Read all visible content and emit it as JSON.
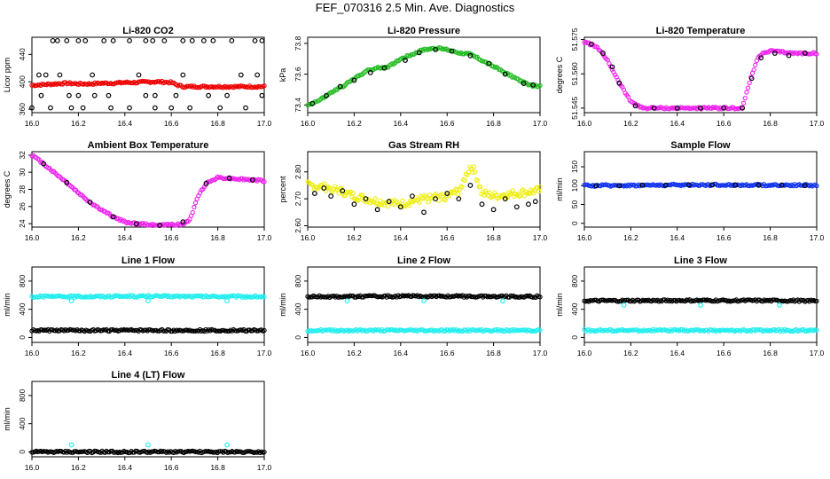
{
  "figure_title": "FEF_070316  2.5 Min. Ave. Diagnostics",
  "colors": {
    "red": "#ee0000",
    "green": "#22bb22",
    "magenta": "#ee22ee",
    "yellow": "#eeee11",
    "blue": "#1133ee",
    "cyan": "#22eeee",
    "black": "#000000"
  },
  "chart_data": [
    {
      "id": "co2",
      "type": "scatter",
      "title": "Li-820 CO2",
      "xlabel": "",
      "ylabel": "Licor ppm",
      "xlim": [
        16.0,
        17.0
      ],
      "ylim": [
        355,
        465
      ],
      "xticks": [
        16.0,
        16.2,
        16.4,
        16.6,
        16.8,
        17.0
      ],
      "xtick_labels": [
        "16.0",
        "16.2",
        "16.4",
        "16.6",
        "16.8",
        "17.0"
      ],
      "yticks": [
        360,
        400,
        440
      ],
      "ytick_labels": [
        "360",
        "400",
        "440"
      ],
      "series": [
        {
          "name": "licor dense",
          "color": "red",
          "style": "dense",
          "x": [
            16.0,
            16.05,
            16.1,
            16.15,
            16.2,
            16.25,
            16.3,
            16.35,
            16.4,
            16.45,
            16.5,
            16.55,
            16.6,
            16.62,
            16.65,
            16.7,
            16.8,
            16.9,
            17.0
          ],
          "y": [
            395,
            396,
            397,
            398,
            397,
            397,
            398,
            398,
            399,
            399,
            400,
            400,
            399,
            396,
            393,
            393,
            393,
            393,
            393
          ]
        },
        {
          "name": "averages",
          "color": "black",
          "style": "open",
          "x": [
            16.09,
            16.11,
            16.15,
            16.2,
            16.23,
            16.31,
            16.35,
            16.42,
            16.49,
            16.52,
            16.57,
            16.65,
            16.69,
            16.74,
            16.78,
            16.86,
            16.96,
            16.99,
            16.0,
            16.08,
            16.17,
            16.22,
            16.34,
            16.42,
            16.53,
            16.6,
            16.68,
            16.81,
            16.92,
            16.04,
            16.16,
            16.2,
            16.27,
            16.33,
            16.49,
            16.53,
            16.62,
            16.76,
            16.84,
            16.99,
            16.03,
            16.06,
            16.12,
            16.26,
            16.46,
            16.65,
            16.9,
            16.97
          ],
          "y": [
            460,
            460,
            460,
            460,
            460,
            460,
            460,
            460,
            460,
            460,
            460,
            460,
            460,
            460,
            460,
            460,
            460,
            460,
            362,
            362,
            362,
            362,
            362,
            362,
            362,
            362,
            362,
            362,
            362,
            380,
            380,
            380,
            380,
            380,
            380,
            380,
            380,
            380,
            380,
            380,
            410,
            410,
            410,
            410,
            410,
            410,
            410,
            410
          ]
        }
      ]
    },
    {
      "id": "pressure",
      "type": "scatter",
      "title": "Li-820 Pressure",
      "xlabel": "",
      "ylabel": "kPa",
      "xlim": [
        16.0,
        17.0
      ],
      "ylim": [
        73.35,
        73.84
      ],
      "xticks": [
        16.0,
        16.2,
        16.4,
        16.6,
        16.8,
        17.0
      ],
      "xtick_labels": [
        "16.0",
        "16.2",
        "16.4",
        "16.6",
        "16.8",
        "17.0"
      ],
      "yticks": [
        73.4,
        73.6,
        73.8
      ],
      "ytick_labels": [
        "73.4",
        "73.6",
        "73.8"
      ],
      "series": [
        {
          "name": "curve",
          "color": "green",
          "style": "dense",
          "x": [
            16.0,
            16.05,
            16.1,
            16.15,
            16.2,
            16.25,
            16.3,
            16.35,
            16.4,
            16.45,
            16.5,
            16.55,
            16.6,
            16.65,
            16.7,
            16.75,
            16.8,
            16.85,
            16.9,
            16.95,
            17.0
          ],
          "y": [
            73.4,
            73.43,
            73.48,
            73.52,
            73.57,
            73.62,
            73.64,
            73.65,
            73.7,
            73.73,
            73.76,
            73.77,
            73.76,
            73.74,
            73.73,
            73.69,
            73.65,
            73.61,
            73.57,
            73.53,
            73.52
          ]
        },
        {
          "name": "averages",
          "color": "black",
          "style": "open",
          "x": [
            16.02,
            16.08,
            16.14,
            16.2,
            16.27,
            16.33,
            16.42,
            16.48,
            16.55,
            16.62,
            16.7,
            16.78,
            16.85,
            16.93,
            16.97
          ],
          "y": [
            73.41,
            73.46,
            73.52,
            73.56,
            73.61,
            73.64,
            73.69,
            73.74,
            73.76,
            73.75,
            73.72,
            73.67,
            73.6,
            73.54,
            73.53
          ]
        }
      ]
    },
    {
      "id": "licor-temp",
      "type": "scatter",
      "title": "Li-820 Temperature",
      "xlabel": "",
      "ylabel": "degrees C",
      "xlim": [
        16.0,
        17.0
      ],
      "ylim": [
        51.543,
        51.576
      ],
      "xticks": [
        16.0,
        16.2,
        16.4,
        16.6,
        16.8,
        17.0
      ],
      "xtick_labels": [
        "16.0",
        "16.2",
        "16.4",
        "16.6",
        "16.8",
        "17.0"
      ],
      "yticks": [
        51.545,
        51.56,
        51.575
      ],
      "ytick_labels": [
        "51.545",
        "51.560",
        "51.575"
      ],
      "series": [
        {
          "name": "temperature",
          "color": "magenta",
          "style": "dense",
          "x": [
            16.0,
            16.05,
            16.1,
            16.15,
            16.2,
            16.25,
            16.3,
            16.4,
            16.5,
            16.6,
            16.68,
            16.71,
            16.75,
            16.8,
            16.9,
            17.0
          ],
          "y": [
            51.574,
            51.572,
            51.566,
            51.556,
            51.548,
            51.545,
            51.545,
            51.545,
            51.545,
            51.545,
            51.545,
            51.556,
            51.568,
            51.57,
            51.569,
            51.569
          ]
        },
        {
          "name": "averages",
          "color": "black",
          "style": "open",
          "x": [
            16.03,
            16.08,
            16.12,
            16.15,
            16.22,
            16.3,
            16.4,
            16.5,
            16.6,
            16.68,
            16.72,
            16.76,
            16.82,
            16.88,
            16.95
          ],
          "y": [
            51.573,
            51.569,
            51.563,
            51.556,
            51.546,
            51.545,
            51.545,
            51.545,
            51.545,
            51.545,
            51.558,
            51.567,
            51.569,
            51.568,
            51.569
          ]
        }
      ]
    },
    {
      "id": "box-temp",
      "type": "scatter",
      "title": "Ambient Box Temperature",
      "xlabel": "",
      "ylabel": "degrees C",
      "xlim": [
        16.0,
        17.0
      ],
      "ylim": [
        23.6,
        32.4
      ],
      "xticks": [
        16.0,
        16.2,
        16.4,
        16.6,
        16.8,
        17.0
      ],
      "xtick_labels": [
        "16.0",
        "16.2",
        "16.4",
        "16.6",
        "16.8",
        "17.0"
      ],
      "yticks": [
        24,
        26,
        28,
        30,
        32
      ],
      "ytick_labels": [
        "24",
        "26",
        "28",
        "30",
        "32"
      ],
      "series": [
        {
          "name": "temperature",
          "color": "magenta",
          "style": "dense",
          "x": [
            16.0,
            16.05,
            16.1,
            16.15,
            16.2,
            16.25,
            16.3,
            16.35,
            16.4,
            16.45,
            16.5,
            16.55,
            16.6,
            16.65,
            16.68,
            16.7,
            16.72,
            16.75,
            16.8,
            16.85,
            16.9,
            16.95,
            17.0
          ],
          "y": [
            32.0,
            31.0,
            29.9,
            28.8,
            27.6,
            26.5,
            25.6,
            24.8,
            24.2,
            24.0,
            23.9,
            23.8,
            23.9,
            23.9,
            24.5,
            26.0,
            27.5,
            28.7,
            29.4,
            29.3,
            29.2,
            29.1,
            29.0
          ]
        },
        {
          "name": "averages",
          "color": "black",
          "style": "open",
          "x": [
            16.05,
            16.15,
            16.25,
            16.35,
            16.45,
            16.55,
            16.65,
            16.75,
            16.85,
            16.95
          ],
          "y": [
            31.0,
            28.8,
            26.5,
            24.8,
            24.0,
            23.8,
            24.2,
            28.7,
            29.3,
            29.1
          ]
        }
      ]
    },
    {
      "id": "rh",
      "type": "scatter",
      "title": "Gas Stream RH",
      "xlabel": "",
      "ylabel": "percent",
      "xlim": [
        16.0,
        17.0
      ],
      "ylim": [
        2.595,
        2.875
      ],
      "xticks": [
        16.0,
        16.2,
        16.4,
        16.6,
        16.8,
        17.0
      ],
      "xtick_labels": [
        "16.0",
        "16.2",
        "16.4",
        "16.6",
        "16.8",
        "17.0"
      ],
      "yticks": [
        2.6,
        2.7,
        2.8
      ],
      "ytick_labels": [
        "2.60",
        "2.70",
        "2.80"
      ],
      "series": [
        {
          "name": "rh",
          "color": "yellow",
          "style": "noisy",
          "x": [
            16.0,
            16.1,
            16.2,
            16.3,
            16.4,
            16.5,
            16.6,
            16.65,
            16.7,
            16.72,
            16.75,
            16.8,
            16.9,
            17.0
          ],
          "y": [
            2.75,
            2.74,
            2.71,
            2.69,
            2.68,
            2.7,
            2.71,
            2.73,
            2.82,
            2.8,
            2.72,
            2.71,
            2.72,
            2.73
          ]
        },
        {
          "name": "averages",
          "color": "black",
          "style": "open",
          "x": [
            16.03,
            16.07,
            16.1,
            16.15,
            16.2,
            16.25,
            16.3,
            16.35,
            16.4,
            16.45,
            16.5,
            16.55,
            16.6,
            16.65,
            16.7,
            16.75,
            16.8,
            16.85,
            16.9,
            16.95,
            16.98
          ],
          "y": [
            2.72,
            2.74,
            2.71,
            2.73,
            2.68,
            2.7,
            2.66,
            2.69,
            2.67,
            2.71,
            2.65,
            2.7,
            2.72,
            2.7,
            2.75,
            2.68,
            2.66,
            2.7,
            2.67,
            2.68,
            2.69
          ]
        }
      ]
    },
    {
      "id": "sample-flow",
      "type": "scatter",
      "title": "Sample Flow",
      "xlabel": "",
      "ylabel": "ml/min",
      "xlim": [
        16.0,
        17.0
      ],
      "ylim": [
        -10,
        190
      ],
      "xticks": [
        16.0,
        16.2,
        16.4,
        16.6,
        16.8,
        17.0
      ],
      "xtick_labels": [
        "16.0",
        "16.2",
        "16.4",
        "16.6",
        "16.8",
        "17.0"
      ],
      "yticks": [
        0,
        50,
        100,
        150
      ],
      "ytick_labels": [
        "0",
        "50",
        "100",
        "150"
      ],
      "series": [
        {
          "name": "flow",
          "color": "blue",
          "style": "dense",
          "x": [
            16.0,
            16.5,
            17.0
          ],
          "y": [
            100,
            102,
            101
          ]
        },
        {
          "name": "averages",
          "color": "black",
          "style": "open",
          "x": [
            16.05,
            16.15,
            16.25,
            16.35,
            16.45,
            16.55,
            16.65,
            16.75,
            16.85,
            16.95
          ],
          "y": [
            100,
            100,
            101,
            101,
            102,
            102,
            101,
            101,
            101,
            100
          ]
        }
      ]
    },
    {
      "id": "line1",
      "type": "scatter",
      "title": "Line 1 Flow",
      "xlabel": "",
      "ylabel": "ml/min",
      "xlim": [
        16.0,
        17.0
      ],
      "ylim": [
        -70,
        1000
      ],
      "xticks": [
        16.0,
        16.2,
        16.4,
        16.6,
        16.8,
        17.0
      ],
      "xtick_labels": [
        "16.0",
        "16.2",
        "16.4",
        "16.6",
        "16.8",
        "17.0"
      ],
      "yticks": [
        0,
        400,
        800
      ],
      "ytick_labels": [
        "0",
        "400",
        "800"
      ],
      "series": [
        {
          "name": "flow high",
          "color": "cyan",
          "style": "dense",
          "x": [
            16.0,
            16.5,
            17.0
          ],
          "y": [
            580,
            585,
            580
          ]
        },
        {
          "name": "flow low",
          "color": "black",
          "style": "dense",
          "x": [
            16.0,
            16.5,
            17.0
          ],
          "y": [
            100,
            100,
            100
          ]
        },
        {
          "name": "outliers",
          "color": "cyan",
          "style": "open",
          "x": [
            16.17,
            16.5,
            16.84
          ],
          "y": [
            520,
            520,
            520
          ]
        }
      ]
    },
    {
      "id": "line2",
      "type": "scatter",
      "title": "Line 2 Flow",
      "xlabel": "",
      "ylabel": "ml/min",
      "xlim": [
        16.0,
        17.0
      ],
      "ylim": [
        -70,
        1000
      ],
      "xticks": [
        16.0,
        16.2,
        16.4,
        16.6,
        16.8,
        17.0
      ],
      "xtick_labels": [
        "16.0",
        "16.2",
        "16.4",
        "16.6",
        "16.8",
        "17.0"
      ],
      "yticks": [
        0,
        400,
        800
      ],
      "ytick_labels": [
        "0",
        "400",
        "800"
      ],
      "series": [
        {
          "name": "flow high",
          "color": "black",
          "style": "dense",
          "x": [
            16.0,
            16.5,
            17.0
          ],
          "y": [
            580,
            585,
            580
          ]
        },
        {
          "name": "flow low",
          "color": "cyan",
          "style": "dense",
          "x": [
            16.0,
            16.5,
            17.0
          ],
          "y": [
            100,
            100,
            100
          ]
        },
        {
          "name": "outliers",
          "color": "cyan",
          "style": "open",
          "x": [
            16.17,
            16.5,
            16.84
          ],
          "y": [
            520,
            520,
            520
          ]
        }
      ]
    },
    {
      "id": "line3",
      "type": "scatter",
      "title": "Line 3 Flow",
      "xlabel": "",
      "ylabel": "ml/min",
      "xlim": [
        16.0,
        17.0
      ],
      "ylim": [
        -70,
        1000
      ],
      "xticks": [
        16.0,
        16.2,
        16.4,
        16.6,
        16.8,
        17.0
      ],
      "xtick_labels": [
        "16.0",
        "16.2",
        "16.4",
        "16.6",
        "16.8",
        "17.0"
      ],
      "yticks": [
        0,
        400,
        800
      ],
      "ytick_labels": [
        "0",
        "400",
        "800"
      ],
      "series": [
        {
          "name": "flow high",
          "color": "black",
          "style": "dense",
          "x": [
            16.0,
            16.5,
            17.0
          ],
          "y": [
            520,
            525,
            520
          ]
        },
        {
          "name": "flow low",
          "color": "cyan",
          "style": "dense",
          "x": [
            16.0,
            16.5,
            17.0
          ],
          "y": [
            100,
            100,
            100
          ]
        },
        {
          "name": "outliers",
          "color": "cyan",
          "style": "open",
          "x": [
            16.17,
            16.5,
            16.84
          ],
          "y": [
            460,
            460,
            460
          ]
        }
      ]
    },
    {
      "id": "line4",
      "type": "scatter",
      "title": "Line 4 (LT) Flow",
      "xlabel": "",
      "ylabel": "ml/min",
      "xlim": [
        16.0,
        17.0
      ],
      "ylim": [
        -70,
        1000
      ],
      "xticks": [
        16.0,
        16.2,
        16.4,
        16.6,
        16.8,
        17.0
      ],
      "xtick_labels": [
        "16.0",
        "16.2",
        "16.4",
        "16.6",
        "16.8",
        "17.0"
      ],
      "yticks": [
        0,
        400,
        800
      ],
      "ytick_labels": [
        "0",
        "400",
        "800"
      ],
      "series": [
        {
          "name": "flow",
          "color": "black",
          "style": "dense",
          "x": [
            16.0,
            16.5,
            17.0
          ],
          "y": [
            0,
            0,
            0
          ]
        },
        {
          "name": "outliers",
          "color": "cyan",
          "style": "open",
          "x": [
            16.17,
            16.5,
            16.84
          ],
          "y": [
            100,
            100,
            100
          ]
        }
      ]
    }
  ]
}
